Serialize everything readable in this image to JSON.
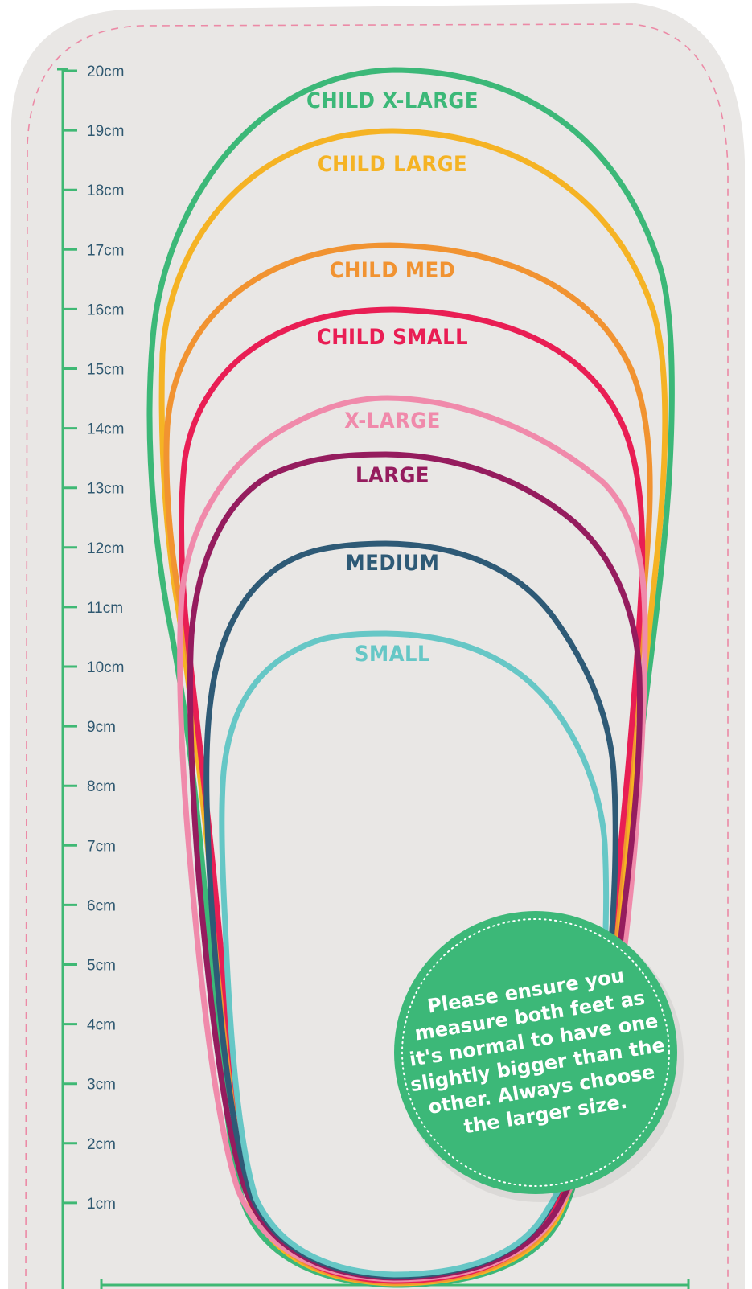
{
  "colors": {
    "mat": "#e9e7e5",
    "ruler": "#3fb874",
    "stitch": "#ec8aa6",
    "note_bg": "#3cb878",
    "note_text": "#ffffff",
    "tick_label": "#2f5870"
  },
  "ruler": {
    "labels": [
      "20cm",
      "19cm",
      "18cm",
      "17cm",
      "16cm",
      "15cm",
      "14cm",
      "13cm",
      "12cm",
      "11cm",
      "10cm",
      "9cm",
      "8cm",
      "7cm",
      "6cm",
      "5cm",
      "4cm",
      "3cm",
      "2cm",
      "1cm"
    ]
  },
  "sizes": [
    {
      "name": "CHILD X-LARGE",
      "color": "#3cb878"
    },
    {
      "name": "CHILD LARGE",
      "color": "#f5b324"
    },
    {
      "name": "CHILD MED",
      "color": "#f19331"
    },
    {
      "name": "CHILD SMALL",
      "color": "#e91e54"
    },
    {
      "name": "X-LARGE",
      "color": "#f08aab"
    },
    {
      "name": "LARGE",
      "color": "#951c5e"
    },
    {
      "name": "MEDIUM",
      "color": "#2e5a76"
    },
    {
      "name": "SMALL",
      "color": "#66c7c6"
    }
  ],
  "note": {
    "lines": [
      "Please ensure you",
      "measure both feet as",
      "it's normal to have one",
      "slightly bigger than the",
      "other. Always choose",
      "the larger size."
    ]
  }
}
